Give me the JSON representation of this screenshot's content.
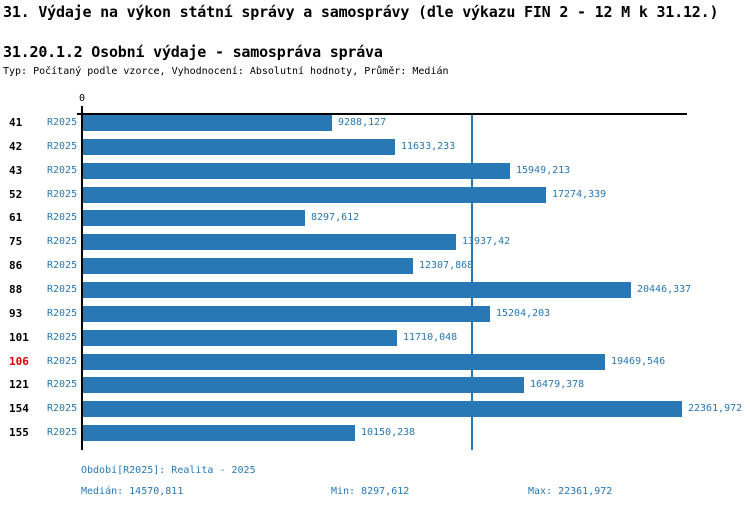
{
  "header": {
    "title": "31. Výdaje na výkon státní správy a samosprávy (dle výkazu FIN 2 - 12 M k 31.12.)",
    "subtitle": "31.20.1.2 Osobní výdaje - samospráva správa",
    "meta": "Typ: Počítaný podle vzorce, Vyhodnocení: Absolutní hodnoty, Průměr: Medián"
  },
  "chart_data": {
    "type": "bar",
    "orientation": "horizontal",
    "title": "31.20.1.2 Osobní výdaje - samospráva správa",
    "axis_zero_label": "0",
    "series_label": "R2025",
    "categories": [
      "41",
      "42",
      "43",
      "52",
      "61",
      "75",
      "86",
      "88",
      "93",
      "101",
      "106",
      "121",
      "154",
      "155"
    ],
    "values": [
      9288.127,
      11633.233,
      15949.213,
      17274.339,
      8297.612,
      13937.42,
      12307.868,
      20446.337,
      15204.203,
      11710.048,
      19469.546,
      16479.378,
      22361.972,
      10150.238
    ],
    "value_labels": [
      "9288,127",
      "11633,233",
      "15949,213",
      "17274,339",
      "8297,612",
      "13937,42",
      "12307,868",
      "20446,337",
      "15204,203",
      "11710,048",
      "19469,546",
      "16479,378",
      "22361,972",
      "10150,238"
    ],
    "highlighted_category": "106",
    "median": 14570.811,
    "min": 8297.612,
    "max": 22361.972,
    "xlim": [
      0,
      22361.972
    ],
    "grid": false,
    "legend": false,
    "colors": {
      "bar": "#2878b5",
      "median_line": "#2878b5",
      "value_label": "#2878b5",
      "series_label": "#2878b5",
      "category_label": "#000000",
      "highlighted_category_label": "#dd0000",
      "axis": "#000000",
      "footer_text": "#2878b5"
    }
  },
  "footer": {
    "period": "Období[R2025]: Realita - 2025",
    "median": "Medián: 14570,811",
    "min": "Min: 8297,612",
    "max": "Max: 22361,972"
  }
}
